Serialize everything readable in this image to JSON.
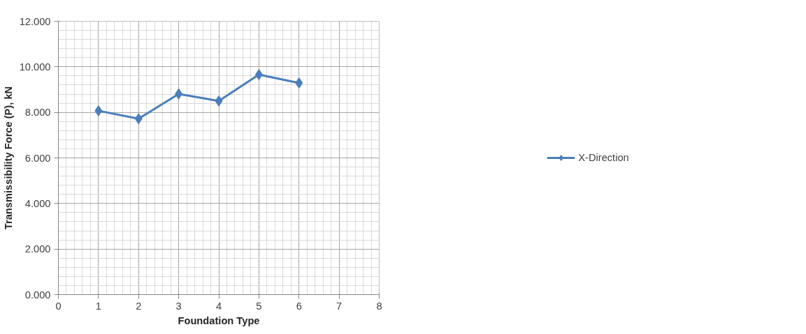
{
  "chart_data": {
    "type": "line",
    "xlabel": "Foundation Type",
    "ylabel": "Transmissibility Force (P), kN",
    "x": [
      1,
      2,
      3,
      4,
      5,
      6
    ],
    "series": [
      {
        "name": "X-Direction",
        "color": "#4a7ebb",
        "values": [
          8.07,
          7.72,
          8.81,
          8.5,
          9.66,
          9.29
        ]
      }
    ],
    "xlim": [
      0,
      8
    ],
    "xticks": [
      0,
      1,
      2,
      3,
      4,
      5,
      6,
      7,
      8
    ],
    "ylim": [
      0,
      12
    ],
    "yticks": [
      {
        "value": 0,
        "label": "0.000"
      },
      {
        "value": 2,
        "label": "2.000"
      },
      {
        "value": 4,
        "label": "4.000"
      },
      {
        "value": 6,
        "label": "6.000"
      },
      {
        "value": 8,
        "label": "8.000"
      },
      {
        "value": 10,
        "label": "10.000"
      },
      {
        "value": 12,
        "label": "12.000"
      }
    ],
    "grid": true,
    "legend": "right",
    "marker": "diamond",
    "line_style": "solid"
  }
}
